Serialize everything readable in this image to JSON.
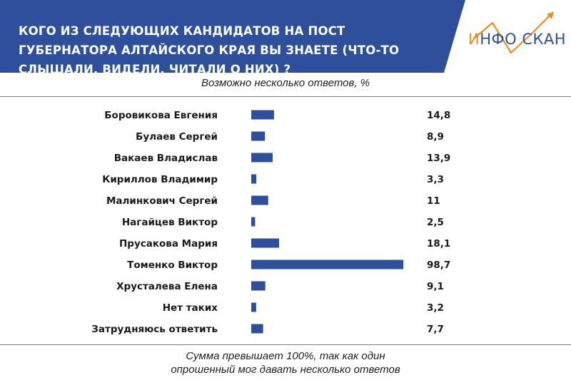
{
  "header": {
    "title": "КОГО ИЗ СЛЕДУЮЩИХ КАНДИДАТОВ НА ПОСТ ГУБЕРНАТОРА АЛТАЙСКОГО КРАЯ ВЫ ЗНАЕТЕ (ЧТО-ТО СЛЫШАЛИ, ВИДЕЛИ, ЧИТАЛИ О НИХ) ?",
    "background_color": "#2e4f9c"
  },
  "logo": {
    "text_part1": "И",
    "text_part2": "НФО",
    "text_part3": "СКАН",
    "color": "#2e4f9c",
    "accent_color": "#f08c1e",
    "icon": "rising-arrow-icon"
  },
  "chart_data": {
    "type": "bar",
    "orientation": "horizontal",
    "subtitle": "Возможно несколько ответов, %",
    "categories": [
      "Боровикова Евгения",
      "Булаев Сергей",
      "Вакаев Владислав",
      "Кириллов Владимир",
      "Малинкович Сергей",
      "Нагайцев Виктор",
      "Прусакова Мария",
      "Томенко Виктор",
      "Хрусталева Елена",
      "Нет таких",
      "Затрудняюсь ответить"
    ],
    "values": [
      14.8,
      8.9,
      13.9,
      3.3,
      11,
      2.5,
      18.1,
      98.7,
      9.1,
      3.2,
      7.7
    ],
    "value_labels": [
      "14,8",
      "8,9",
      "13,9",
      "3,3",
      "11",
      "2,5",
      "18,1",
      "98,7",
      "9,1",
      "3,2",
      "7,7"
    ],
    "xlim": [
      0,
      100
    ],
    "bar_color": "#2e4f9c",
    "grid": false,
    "legend": "none"
  },
  "footnote": {
    "line1": "Сумма превышает 100%, так как один",
    "line2": "опрошенный мог давать несколько ответов"
  }
}
